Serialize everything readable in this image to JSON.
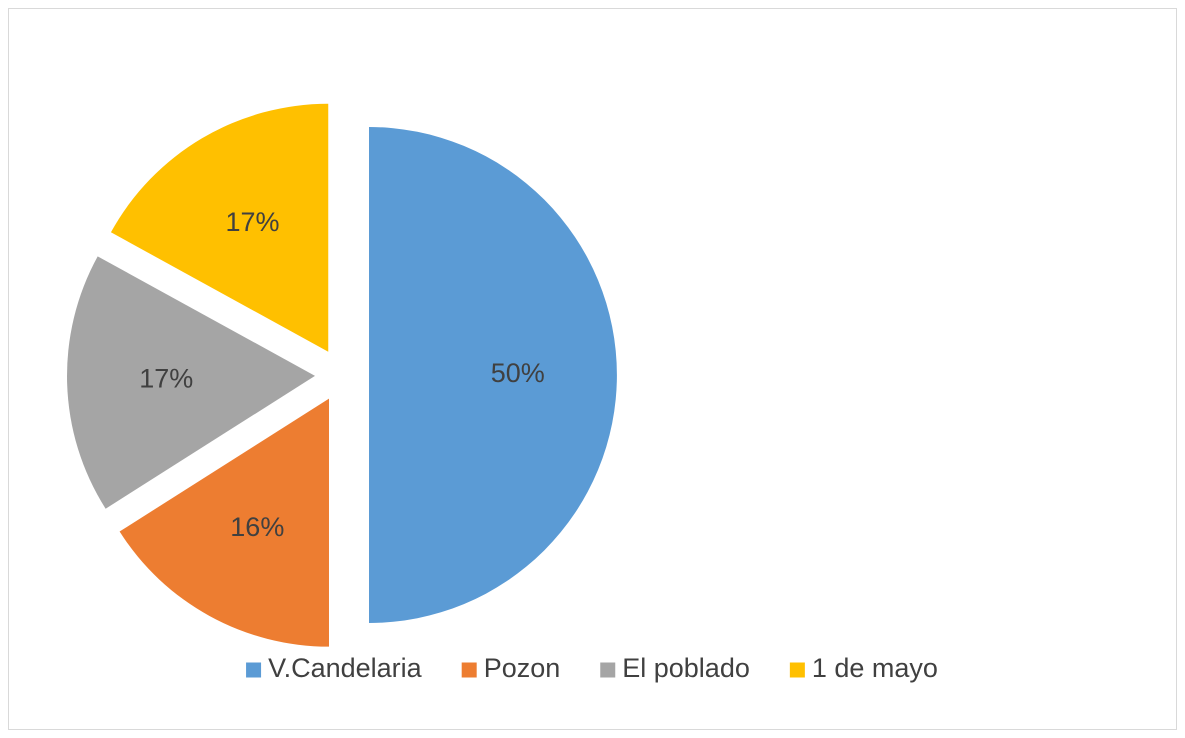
{
  "chart_data": {
    "type": "pie",
    "categories": [
      "V.Candelaria",
      "Pozon",
      "El poblado",
      "1 de mayo"
    ],
    "values": [
      50,
      16,
      17,
      17
    ],
    "value_labels": [
      "50%",
      "16%",
      "17%",
      "17%"
    ],
    "colors": [
      "#5b9bd5",
      "#ed7d31",
      "#a5a5a5",
      "#ffc000"
    ],
    "legend": "bottom"
  }
}
